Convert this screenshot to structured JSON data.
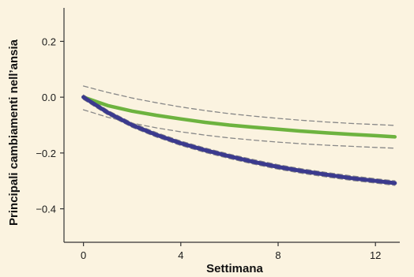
{
  "chart_data": {
    "type": "line",
    "xlabel": "Settimana",
    "ylabel": "Principali cambiamenti nell’ansia",
    "xlim": [
      -0.8,
      13.0
    ],
    "ylim": [
      -0.52,
      0.32
    ],
    "x_ticks": [
      0,
      4,
      8,
      12
    ],
    "x_tick_labels": [
      "0",
      "4",
      "8",
      "12"
    ],
    "y_ticks": [
      0.2,
      0.0,
      -0.2,
      -0.4
    ],
    "y_tick_labels": [
      "0.2",
      "0.0",
      "−0.2",
      "−0.4"
    ],
    "x": [
      0,
      1,
      2,
      3,
      4,
      5,
      6,
      7,
      8,
      9,
      10,
      11,
      12,
      12.8
    ],
    "series": [
      {
        "color": "#6db33f",
        "style": "solid",
        "values": [
          0.0,
          -0.03,
          -0.05,
          -0.065,
          -0.078,
          -0.09,
          -0.1,
          -0.108,
          -0.115,
          -0.122,
          -0.128,
          -0.133,
          -0.138,
          -0.142
        ]
      },
      {
        "color": "#3b3a8e",
        "style": "solid",
        "values": [
          0.0,
          -0.055,
          -0.1,
          -0.135,
          -0.165,
          -0.19,
          -0.212,
          -0.232,
          -0.25,
          -0.265,
          -0.278,
          -0.29,
          -0.3,
          -0.308
        ]
      },
      {
        "color": "#888888",
        "style": "dashed",
        "values": [
          0.04,
          0.017,
          -0.003,
          -0.02,
          -0.035,
          -0.048,
          -0.059,
          -0.068,
          -0.076,
          -0.083,
          -0.089,
          -0.094,
          -0.098,
          -0.101
        ]
      },
      {
        "color": "#888888",
        "style": "dashed",
        "values": [
          -0.045,
          -0.072,
          -0.093,
          -0.11,
          -0.124,
          -0.136,
          -0.146,
          -0.154,
          -0.161,
          -0.167,
          -0.172,
          -0.176,
          -0.18,
          -0.183
        ]
      },
      {
        "color": "#888888",
        "style": "dashed",
        "values": [
          0.008,
          -0.047,
          -0.092,
          -0.127,
          -0.157,
          -0.182,
          -0.204,
          -0.224,
          -0.242,
          -0.257,
          -0.27,
          -0.282,
          -0.292,
          -0.3
        ]
      },
      {
        "color": "#888888",
        "style": "dashed",
        "values": [
          -0.008,
          -0.063,
          -0.108,
          -0.143,
          -0.173,
          -0.198,
          -0.22,
          -0.24,
          -0.258,
          -0.273,
          -0.286,
          -0.298,
          -0.308,
          -0.316
        ]
      }
    ],
    "grid": false,
    "legend": "none",
    "colors": {
      "background": "#fbf3e0",
      "axis": "#333333"
    }
  }
}
